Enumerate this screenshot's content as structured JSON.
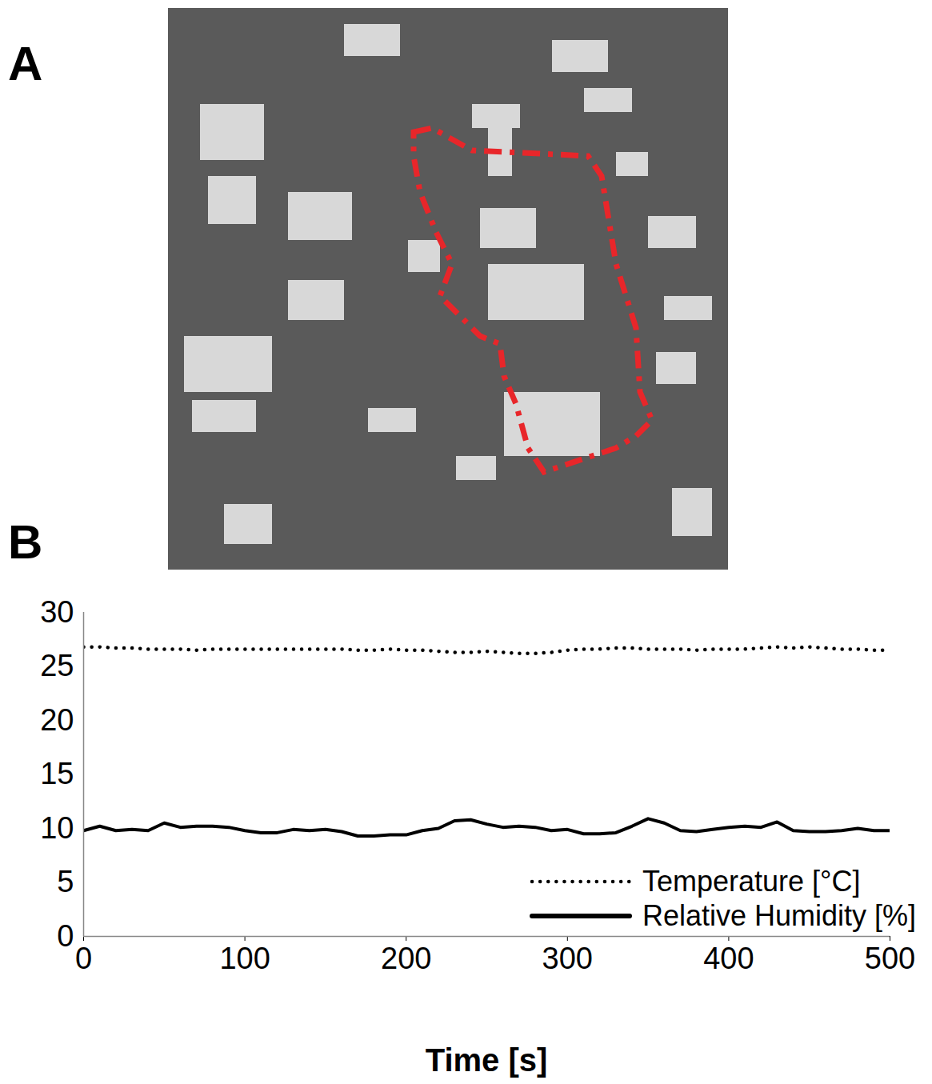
{
  "panel_labels": [
    "A",
    "B"
  ],
  "chart_data": {
    "type": "line",
    "xlabel": "Time [s]",
    "x": [
      0,
      10,
      20,
      30,
      40,
      50,
      60,
      70,
      80,
      90,
      100,
      110,
      120,
      130,
      140,
      150,
      160,
      170,
      180,
      190,
      200,
      210,
      220,
      230,
      240,
      250,
      260,
      270,
      280,
      290,
      300,
      310,
      320,
      330,
      340,
      350,
      360,
      370,
      380,
      390,
      400,
      410,
      420,
      430,
      440,
      450,
      460,
      470,
      480,
      490,
      500
    ],
    "series": [
      {
        "name": "Temperature [°C]",
        "color": "#000000",
        "line_style": "dotted",
        "values": [
          26.8,
          26.8,
          26.7,
          26.7,
          26.6,
          26.6,
          26.6,
          26.5,
          26.6,
          26.6,
          26.6,
          26.6,
          26.6,
          26.6,
          26.6,
          26.6,
          26.6,
          26.5,
          26.5,
          26.6,
          26.5,
          26.5,
          26.4,
          26.3,
          26.3,
          26.4,
          26.3,
          26.2,
          26.2,
          26.3,
          26.5,
          26.6,
          26.6,
          26.7,
          26.7,
          26.6,
          26.6,
          26.6,
          26.5,
          26.6,
          26.6,
          26.6,
          26.7,
          26.8,
          26.7,
          26.8,
          26.7,
          26.6,
          26.6,
          26.5,
          26.5
        ]
      },
      {
        "name": "Relative Humidity [%]",
        "color": "#000000",
        "line_style": "solid",
        "values": [
          9.8,
          10.2,
          9.8,
          9.9,
          9.8,
          10.5,
          10.1,
          10.2,
          10.2,
          10.1,
          9.8,
          9.6,
          9.6,
          9.9,
          9.8,
          9.9,
          9.7,
          9.3,
          9.3,
          9.4,
          9.4,
          9.8,
          10.0,
          10.7,
          10.8,
          10.4,
          10.1,
          10.2,
          10.1,
          9.8,
          9.9,
          9.5,
          9.5,
          9.6,
          10.2,
          10.9,
          10.5,
          9.8,
          9.7,
          9.9,
          10.1,
          10.2,
          10.1,
          10.6,
          9.8,
          9.7,
          9.7,
          9.8,
          10.0,
          9.8,
          9.8
        ]
      }
    ],
    "xlim": [
      0,
      500
    ],
    "xticks": [
      0,
      100,
      200,
      300,
      400,
      500
    ],
    "ylim": [
      0,
      30
    ],
    "yticks": [
      0,
      5,
      10,
      15,
      20,
      25,
      30
    ],
    "grid": false,
    "legend": "bottom-right"
  }
}
